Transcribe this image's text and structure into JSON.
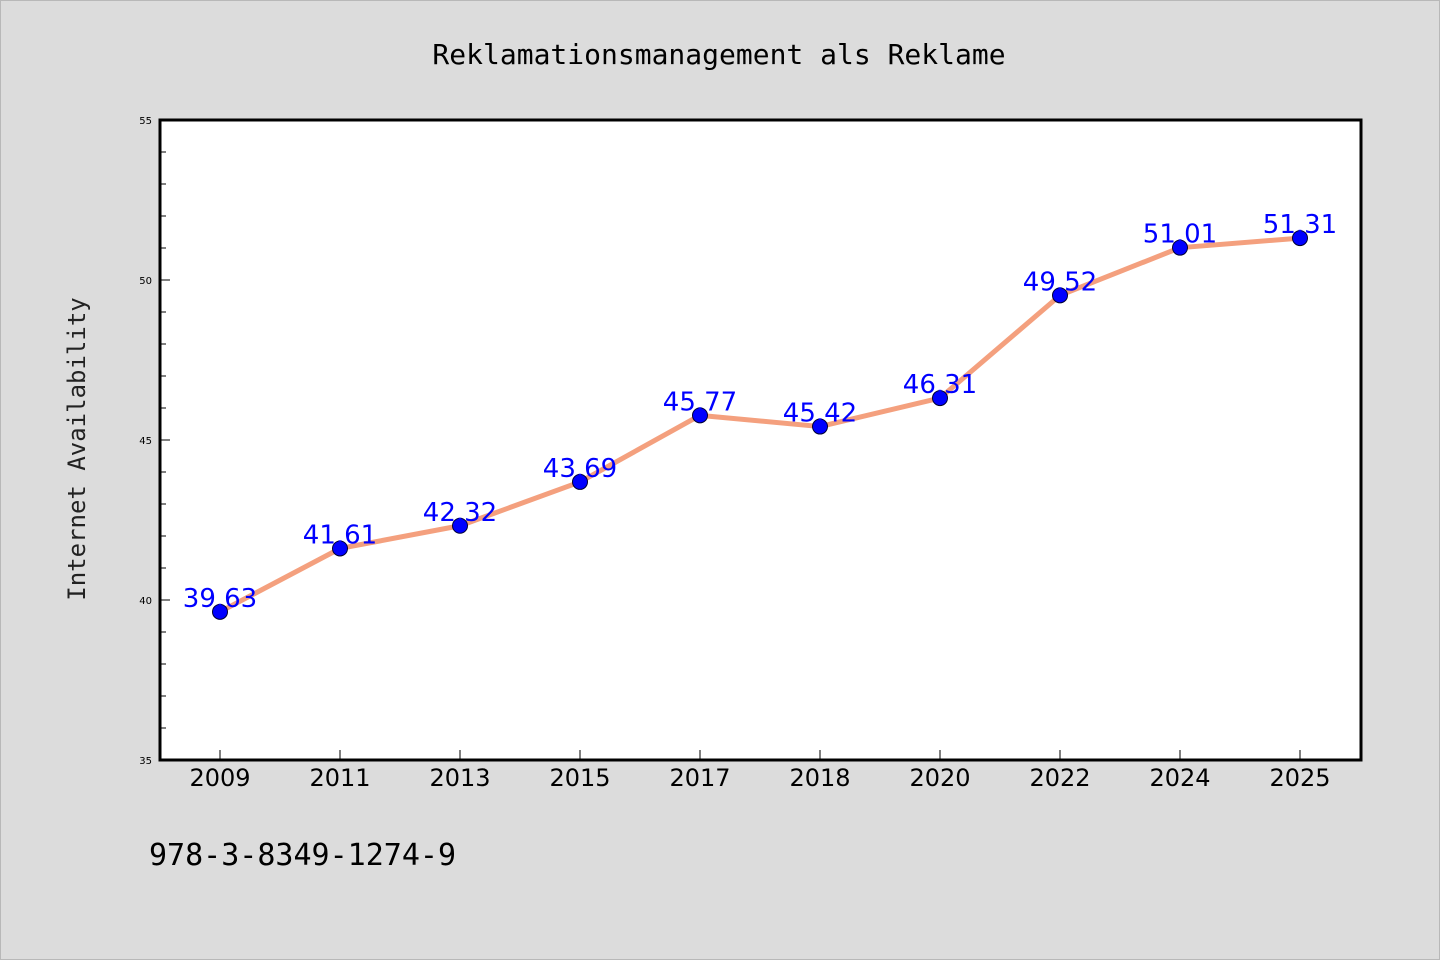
{
  "chart_data": {
    "type": "line",
    "title": "Reklamationsmanagement als Reklame",
    "xlabel": "",
    "ylabel": "Internet Availability",
    "categories": [
      "2009",
      "2011",
      "2013",
      "2015",
      "2017",
      "2018",
      "2020",
      "2022",
      "2024",
      "2025"
    ],
    "series": [
      {
        "values": [
          39.63,
          41.61,
          42.32,
          43.69,
          45.77,
          45.42,
          46.31,
          49.52,
          51.01,
          51.31
        ]
      }
    ],
    "data_labels": [
      "39.63",
      "41.61",
      "42.32",
      "43.69",
      "45.77",
      "45.42",
      "46.31",
      "49.52",
      "51.01",
      "51.31"
    ],
    "ylim": [
      35,
      55
    ],
    "yticks": [
      "35",
      "40",
      "45",
      "50",
      "55"
    ],
    "grid": false,
    "legend": "none",
    "colors": {
      "line": "#f4a07e",
      "marker": "#0000ff",
      "label": "#0000ff",
      "background": "#dcdcdc",
      "plot_background": "#ffffff"
    }
  },
  "footer_text": "978-3-8349-1274-9"
}
